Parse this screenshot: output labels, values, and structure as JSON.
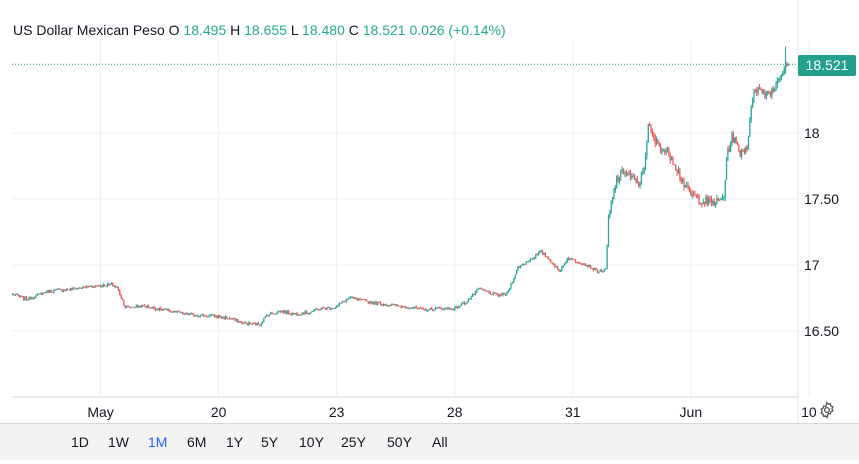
{
  "legend": {
    "symbol": "US Dollar Mexican Peso",
    "o_label": "O",
    "o_value": "18.495",
    "h_label": "H",
    "h_value": "18.655",
    "l_label": "L",
    "l_value": "18.480",
    "c_label": "C",
    "c_value": "18.521",
    "change": "0.026 (+0.14%)"
  },
  "price_tag": "18.521",
  "ranges": [
    {
      "label": "1D",
      "active": false
    },
    {
      "label": "1W",
      "active": false
    },
    {
      "label": "1M",
      "active": true
    },
    {
      "label": "6M",
      "active": false
    },
    {
      "label": "1Y",
      "active": false
    },
    {
      "label": "5Y",
      "active": false
    },
    {
      "label": "10Y",
      "active": false
    },
    {
      "label": "25Y",
      "active": false
    },
    {
      "label": "50Y",
      "active": false
    },
    {
      "label": "All",
      "active": false
    }
  ],
  "colors": {
    "up": "#26a69a",
    "down": "#ef5350",
    "accent": "#2962ff",
    "tag": "#22a08c",
    "grid": "#eceff2"
  },
  "icons": {
    "settings": "gear-icon"
  },
  "chart_data": {
    "type": "candlestick",
    "title": "US Dollar Mexican Peso",
    "xlabel": "",
    "ylabel": "",
    "ylim": [
      16.0,
      18.9
    ],
    "y_ticks": [
      "18",
      "17.50",
      "17",
      "16.50"
    ],
    "y_tick_values": [
      18,
      17.5,
      17,
      16.5
    ],
    "x_ticks": [
      "May",
      "20",
      "23",
      "28",
      "31",
      "Jun",
      "10"
    ],
    "x_tick_index": [
      64,
      150,
      236,
      322,
      408,
      494,
      580
    ],
    "last_price": 18.521,
    "grid": true,
    "keypoints": [
      [
        0,
        16.78
      ],
      [
        10,
        16.74
      ],
      [
        25,
        16.8
      ],
      [
        45,
        16.82
      ],
      [
        58,
        16.84
      ],
      [
        72,
        16.85
      ],
      [
        76,
        16.83
      ],
      [
        82,
        16.68
      ],
      [
        95,
        16.69
      ],
      [
        110,
        16.66
      ],
      [
        125,
        16.63
      ],
      [
        135,
        16.62
      ],
      [
        150,
        16.61
      ],
      [
        160,
        16.59
      ],
      [
        168,
        16.56
      ],
      [
        180,
        16.55
      ],
      [
        185,
        16.62
      ],
      [
        195,
        16.65
      ],
      [
        205,
        16.63
      ],
      [
        215,
        16.64
      ],
      [
        225,
        16.67
      ],
      [
        235,
        16.68
      ],
      [
        245,
        16.75
      ],
      [
        255,
        16.73
      ],
      [
        265,
        16.71
      ],
      [
        280,
        16.69
      ],
      [
        290,
        16.68
      ],
      [
        300,
        16.66
      ],
      [
        310,
        16.67
      ],
      [
        322,
        16.67
      ],
      [
        330,
        16.72
      ],
      [
        340,
        16.82
      ],
      [
        345,
        16.8
      ],
      [
        352,
        16.77
      ],
      [
        360,
        16.78
      ],
      [
        368,
        16.98
      ],
      [
        378,
        17.05
      ],
      [
        385,
        17.1
      ],
      [
        393,
        17.02
      ],
      [
        398,
        16.95
      ],
      [
        404,
        17.05
      ],
      [
        414,
        17.02
      ],
      [
        422,
        16.98
      ],
      [
        426,
        16.95
      ],
      [
        432,
        16.96
      ],
      [
        434,
        17.35
      ],
      [
        440,
        17.65
      ],
      [
        446,
        17.72
      ],
      [
        452,
        17.65
      ],
      [
        456,
        17.6
      ],
      [
        460,
        17.75
      ],
      [
        463,
        18.05
      ],
      [
        467,
        17.95
      ],
      [
        473,
        17.88
      ],
      [
        480,
        17.82
      ],
      [
        486,
        17.68
      ],
      [
        492,
        17.55
      ],
      [
        500,
        17.5
      ],
      [
        508,
        17.47
      ],
      [
        514,
        17.48
      ],
      [
        518,
        17.52
      ],
      [
        520,
        17.8
      ],
      [
        524,
        17.98
      ],
      [
        530,
        17.85
      ],
      [
        535,
        17.9
      ],
      [
        540,
        18.35
      ],
      [
        548,
        18.3
      ],
      [
        554,
        18.32
      ],
      [
        558,
        18.42
      ],
      [
        565,
        18.52
      ]
    ]
  }
}
